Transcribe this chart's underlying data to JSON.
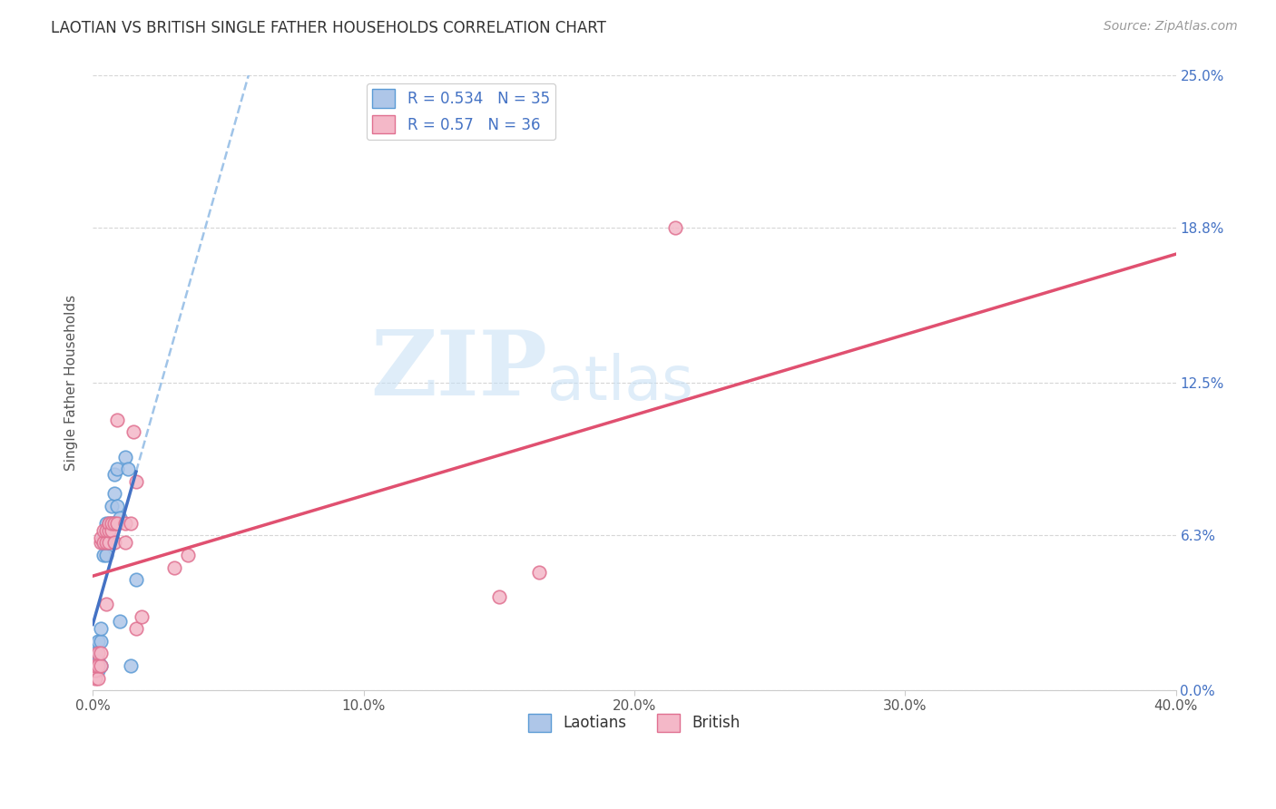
{
  "title": "LAOTIAN VS BRITISH SINGLE FATHER HOUSEHOLDS CORRELATION CHART",
  "source": "Source: ZipAtlas.com",
  "ylabel": "Single Father Households",
  "xlim": [
    0.0,
    0.4
  ],
  "ylim": [
    0.0,
    0.25
  ],
  "xtick_values": [
    0.0,
    0.1,
    0.2,
    0.3,
    0.4
  ],
  "ytick_values": [
    0.0,
    0.063,
    0.125,
    0.188,
    0.25
  ],
  "laotian_r": 0.534,
  "laotian_n": 35,
  "british_r": 0.57,
  "british_n": 36,
  "laotian_color": "#aec6e8",
  "laotian_edge_color": "#5b9bd5",
  "laotian_line_color": "#4472c4",
  "british_color": "#f4b8c8",
  "british_edge_color": "#e07090",
  "british_line_color": "#e05070",
  "dash_line_color": "#a0c4e8",
  "laotian_points": [
    [
      0.001,
      0.008
    ],
    [
      0.001,
      0.01
    ],
    [
      0.001,
      0.015
    ],
    [
      0.002,
      0.008
    ],
    [
      0.002,
      0.01
    ],
    [
      0.002,
      0.012
    ],
    [
      0.002,
      0.02
    ],
    [
      0.003,
      0.01
    ],
    [
      0.003,
      0.02
    ],
    [
      0.003,
      0.025
    ],
    [
      0.004,
      0.055
    ],
    [
      0.004,
      0.06
    ],
    [
      0.004,
      0.06
    ],
    [
      0.004,
      0.062
    ],
    [
      0.005,
      0.055
    ],
    [
      0.005,
      0.06
    ],
    [
      0.005,
      0.065
    ],
    [
      0.005,
      0.068
    ],
    [
      0.006,
      0.06
    ],
    [
      0.006,
      0.065
    ],
    [
      0.006,
      0.068
    ],
    [
      0.007,
      0.062
    ],
    [
      0.007,
      0.068
    ],
    [
      0.007,
      0.075
    ],
    [
      0.008,
      0.068
    ],
    [
      0.008,
      0.08
    ],
    [
      0.008,
      0.088
    ],
    [
      0.009,
      0.075
    ],
    [
      0.009,
      0.09
    ],
    [
      0.01,
      0.028
    ],
    [
      0.01,
      0.07
    ],
    [
      0.012,
      0.095
    ],
    [
      0.013,
      0.09
    ],
    [
      0.014,
      0.01
    ],
    [
      0.016,
      0.045
    ]
  ],
  "british_points": [
    [
      0.001,
      0.005
    ],
    [
      0.001,
      0.008
    ],
    [
      0.001,
      0.01
    ],
    [
      0.002,
      0.005
    ],
    [
      0.002,
      0.01
    ],
    [
      0.002,
      0.015
    ],
    [
      0.003,
      0.01
    ],
    [
      0.003,
      0.015
    ],
    [
      0.003,
      0.06
    ],
    [
      0.003,
      0.062
    ],
    [
      0.004,
      0.06
    ],
    [
      0.004,
      0.065
    ],
    [
      0.005,
      0.035
    ],
    [
      0.005,
      0.06
    ],
    [
      0.005,
      0.065
    ],
    [
      0.006,
      0.06
    ],
    [
      0.006,
      0.065
    ],
    [
      0.006,
      0.068
    ],
    [
      0.007,
      0.065
    ],
    [
      0.007,
      0.068
    ],
    [
      0.008,
      0.06
    ],
    [
      0.008,
      0.068
    ],
    [
      0.009,
      0.068
    ],
    [
      0.009,
      0.11
    ],
    [
      0.012,
      0.06
    ],
    [
      0.012,
      0.068
    ],
    [
      0.014,
      0.068
    ],
    [
      0.015,
      0.105
    ],
    [
      0.016,
      0.025
    ],
    [
      0.016,
      0.085
    ],
    [
      0.018,
      0.03
    ],
    [
      0.03,
      0.05
    ],
    [
      0.035,
      0.055
    ],
    [
      0.15,
      0.038
    ],
    [
      0.165,
      0.048
    ],
    [
      0.215,
      0.188
    ]
  ],
  "background_color": "#ffffff",
  "grid_color": "#cccccc",
  "watermark_zip": "ZIP",
  "watermark_atlas": "atlas",
  "watermark_color_zip": "#c5dff5",
  "watermark_color_atlas": "#c5dff5"
}
